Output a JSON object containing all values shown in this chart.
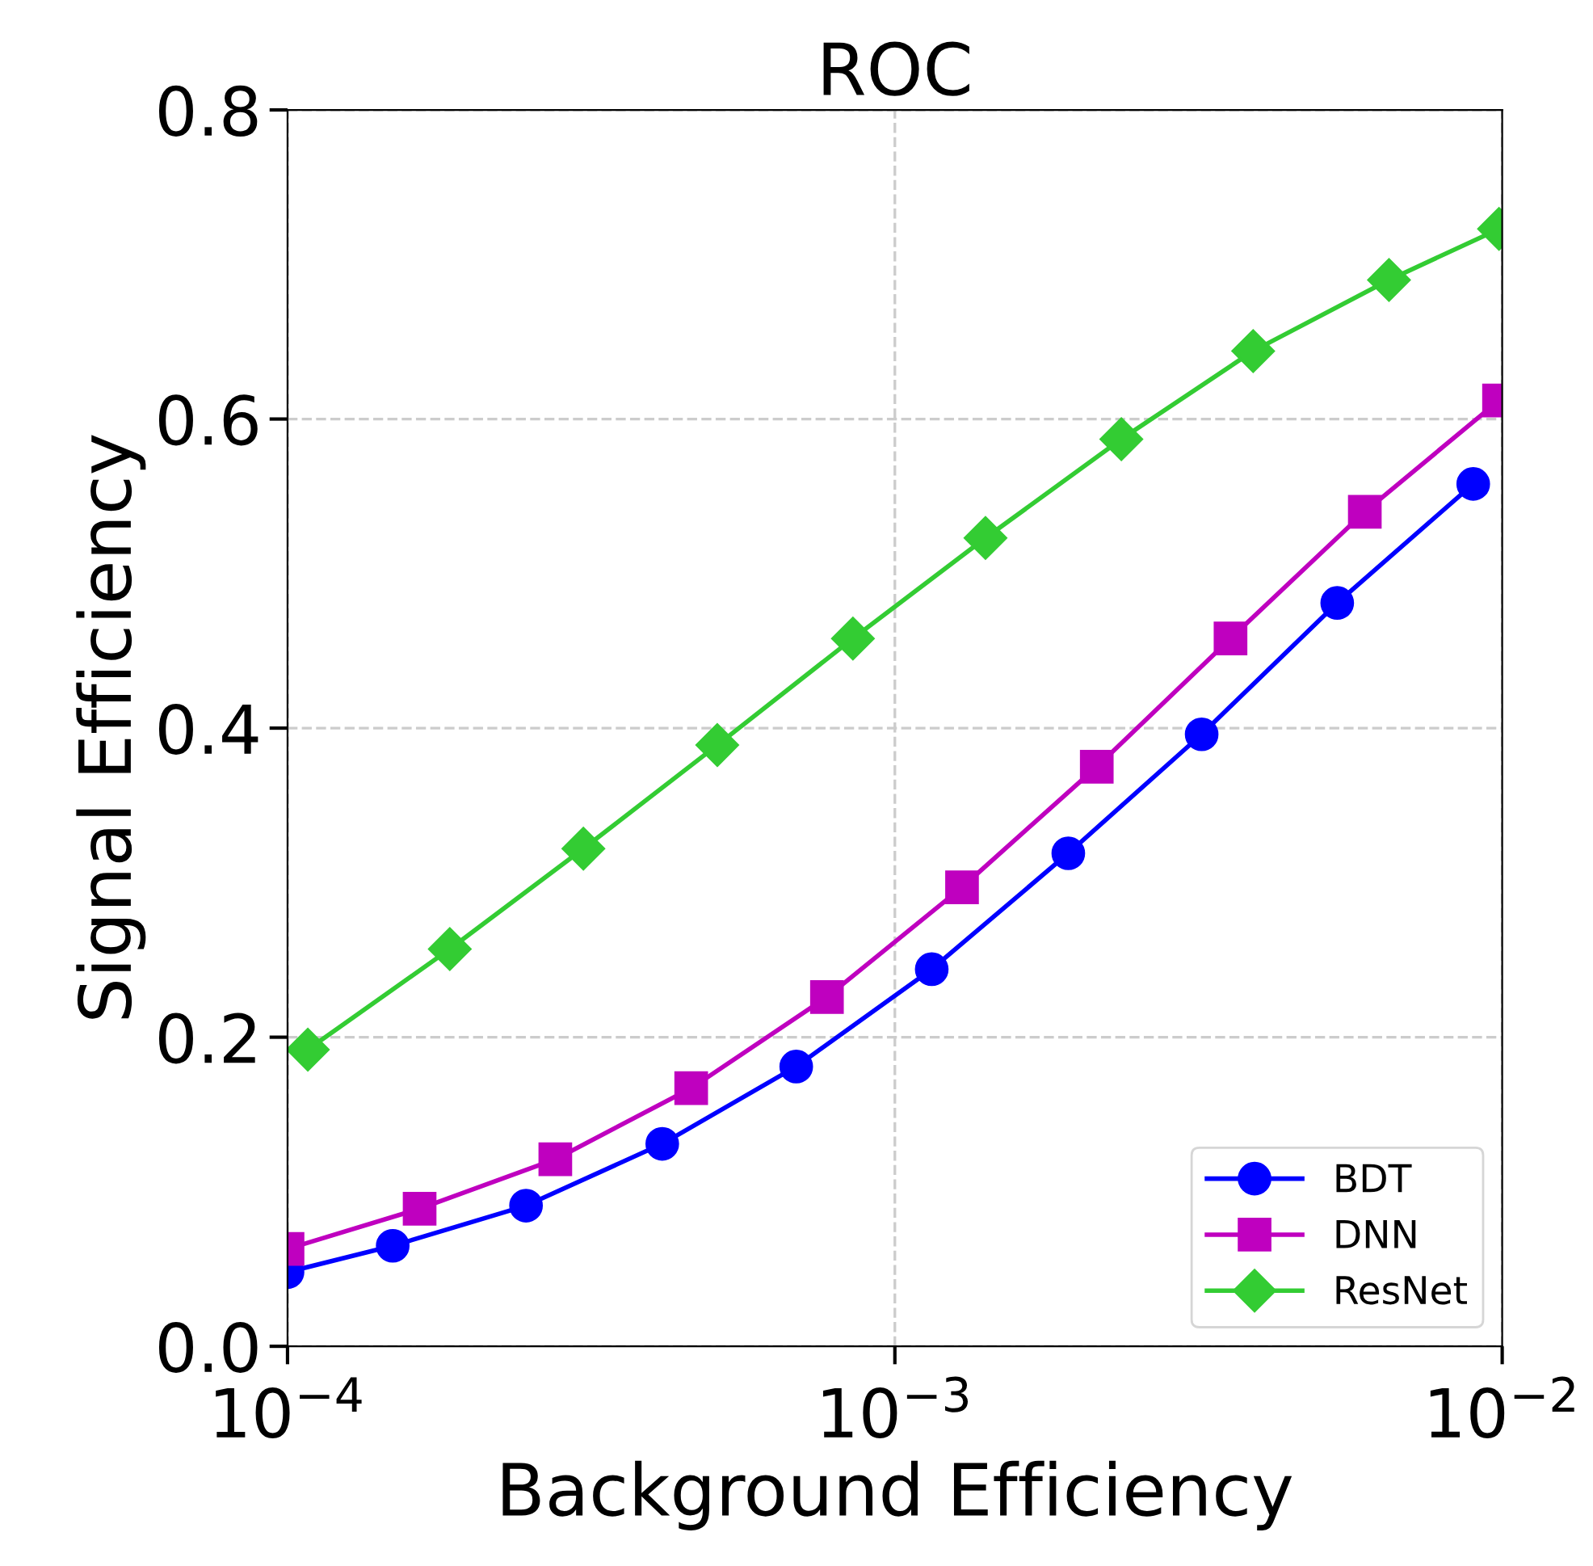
{
  "chart_data": {
    "type": "line",
    "title": "ROC",
    "xlabel": "Background Efficiency",
    "ylabel": "Signal Efficiency",
    "log": "x",
    "xlim": [
      0.0001,
      0.01
    ],
    "xticks": [
      {
        "value": 0.0001,
        "label": "10$^{−4}$"
      },
      {
        "value": 0.001,
        "label": "10$^{−3}$"
      },
      {
        "value": 0.01,
        "label": "10$^{−2}$"
      }
    ],
    "ylim": [
      0,
      0.8
    ],
    "yticks": [
      {
        "value": 0,
        "label": "0.0"
      },
      0.2,
      0.4,
      0.6,
      0.8
    ],
    "grid": true,
    "legend": "bottom right",
    "line_style": "solid",
    "series": [
      {
        "name": "BDT",
        "color": "#0000ff",
        "marker": "circle",
        "x": [
          0.0001,
          0.000149,
          0.000247,
          0.000414,
          0.000688,
          0.00115,
          0.00193,
          0.0032,
          0.00535,
          0.00896
        ],
        "values": [
          0.048,
          0.065,
          0.091,
          0.131,
          0.181,
          0.244,
          0.319,
          0.396,
          0.481,
          0.558
        ]
      },
      {
        "name": "DNN",
        "color": "#bf00bf",
        "marker": "square",
        "x": [
          0.0001,
          0.000165,
          0.000276,
          0.000462,
          0.000773,
          0.00129,
          0.00215,
          0.00357,
          0.00594,
          0.00988
        ],
        "values": [
          0.063,
          0.089,
          0.121,
          0.167,
          0.226,
          0.297,
          0.375,
          0.458,
          0.54,
          0.612
        ]
      },
      {
        "name": "ResNet",
        "color": "#33cc33",
        "marker": "diamond",
        "x": [
          0.000108,
          0.000185,
          0.000307,
          0.00051,
          0.000853,
          0.00141,
          0.00236,
          0.00389,
          0.00651,
          0.00988
        ],
        "values": [
          0.192,
          0.257,
          0.322,
          0.389,
          0.458,
          0.523,
          0.587,
          0.644,
          0.69,
          0.723
        ]
      }
    ]
  }
}
